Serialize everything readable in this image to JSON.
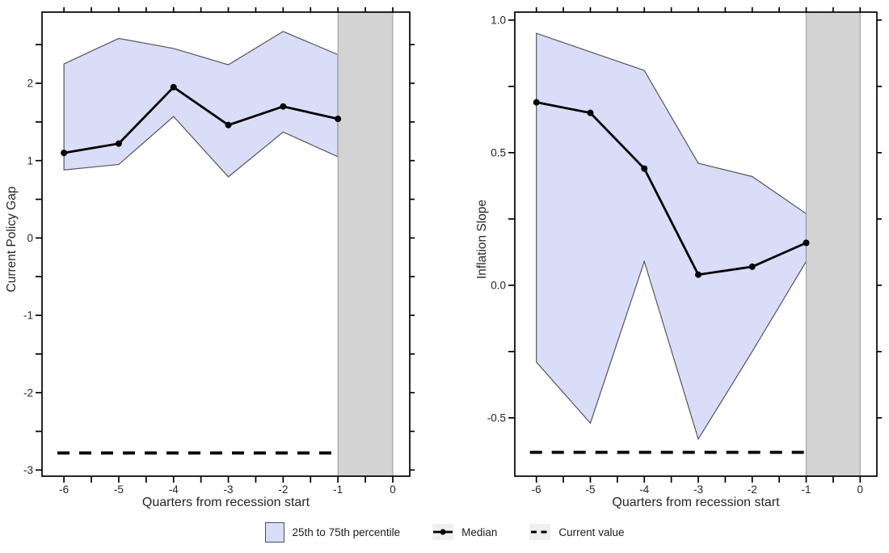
{
  "legend": {
    "items": [
      {
        "key": "percentile-band",
        "label": "25th to 75th percentile"
      },
      {
        "key": "median",
        "label": "Median"
      },
      {
        "key": "current-value",
        "label": "Current value"
      }
    ]
  },
  "colors": {
    "background": "#ffffff",
    "band_fill": "#d9ddf8",
    "band_edge": "#565656",
    "median_line": "#000000",
    "dashed_line": "#000000",
    "shade_fill": "#d3d3d3",
    "shade_edge": "#999999",
    "axis": "#000000",
    "tick_text": "#262626",
    "legend_key_bg": "#efefef"
  },
  "chart_data": [
    {
      "type": "line",
      "panel": "left",
      "title": "",
      "xlabel": "Quarters from recession start",
      "ylabel": "Current Policy Gap",
      "x": [
        -6,
        -5,
        -4,
        -3,
        -2,
        -1
      ],
      "series": [
        {
          "name": "Median",
          "values": [
            1.1,
            1.22,
            1.95,
            1.46,
            1.7,
            1.54
          ]
        },
        {
          "name": "75th percentile",
          "values": [
            2.25,
            2.58,
            2.45,
            2.24,
            2.67,
            2.37
          ]
        },
        {
          "name": "25th percentile",
          "values": [
            0.88,
            0.95,
            1.57,
            0.79,
            1.37,
            1.05
          ]
        }
      ],
      "current_value": -2.78,
      "current_value_x": [
        -6.12,
        -1
      ],
      "shaded_region_x": [
        -1,
        0
      ],
      "xlim": [
        -6.4,
        0.31
      ],
      "ylim": [
        -3.08,
        2.92
      ],
      "xticks": [
        -6,
        -5,
        -4,
        -3,
        -2,
        -1,
        0
      ],
      "xtick_labels": [
        "-6",
        "-5",
        "-4",
        "-3",
        "-2",
        "-1",
        "0"
      ],
      "x_minor_ticks": [
        -5.5,
        -4.5,
        -3.5,
        -2.5,
        -1.5,
        -0.5
      ],
      "yticks": [
        2,
        1,
        0,
        -1,
        -2,
        -3
      ],
      "ytick_labels": [
        "2",
        "1",
        "0",
        "-1",
        "-2",
        "-3"
      ],
      "y_minor_ticks": [
        2.5,
        1.5,
        0.5,
        -0.5,
        -1.5,
        -2.5
      ],
      "grid": false
    },
    {
      "type": "line",
      "panel": "right",
      "title": "",
      "xlabel": "Quarters from recession start",
      "ylabel": "Inflation Slope",
      "x": [
        -6,
        -5,
        -4,
        -3,
        -2,
        -1
      ],
      "series": [
        {
          "name": "Median",
          "values": [
            0.69,
            0.65,
            0.44,
            0.04,
            0.07,
            0.16
          ]
        },
        {
          "name": "75th percentile",
          "values": [
            0.95,
            0.88,
            0.81,
            0.46,
            0.41,
            0.27
          ]
        },
        {
          "name": "25th percentile",
          "values": [
            -0.29,
            -0.52,
            0.09,
            -0.58,
            -0.25,
            0.09
          ]
        }
      ],
      "current_value": -0.63,
      "current_value_x": [
        -6.12,
        -1
      ],
      "shaded_region_x": [
        -1,
        0
      ],
      "xlim": [
        -6.4,
        0.31
      ],
      "ylim": [
        -0.72,
        1.03
      ],
      "xticks": [
        -6,
        -5,
        -4,
        -3,
        -2,
        -1,
        0
      ],
      "xtick_labels": [
        "-6",
        "-5",
        "-4",
        "-3",
        "-2",
        "-1",
        "0"
      ],
      "x_minor_ticks": [
        -5.5,
        -4.5,
        -3.5,
        -2.5,
        -1.5,
        -0.5
      ],
      "yticks": [
        1.0,
        0.5,
        0.0,
        -0.5
      ],
      "ytick_labels": [
        "1.0",
        "0.5",
        "0.0",
        "-0.5"
      ],
      "y_minor_ticks": [
        0.75,
        0.25,
        -0.25
      ],
      "grid": false
    }
  ]
}
